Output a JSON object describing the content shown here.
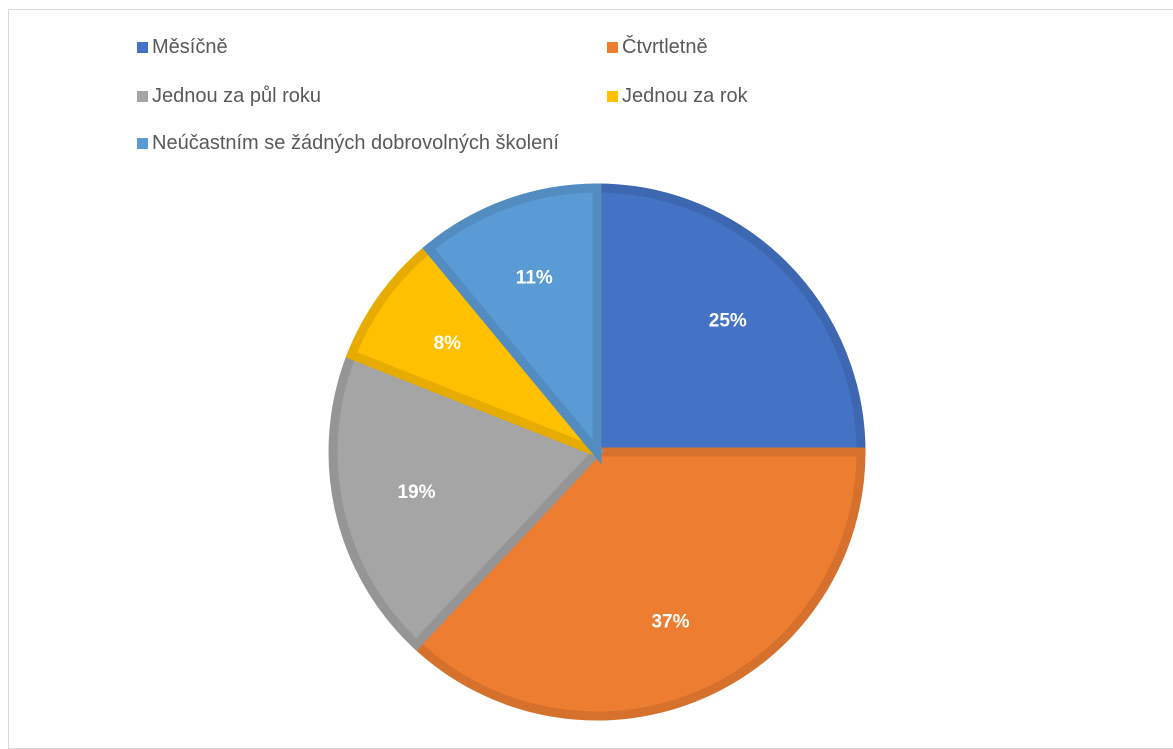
{
  "chart_data": {
    "type": "pie",
    "title": "",
    "categories": [
      "Měsíčně",
      "Čtvrtletně",
      "Jednou za půl roku",
      "Jednou za rok",
      "Neúčastním se žádných dobrovolných školení"
    ],
    "values": [
      25,
      37,
      19,
      8,
      11
    ],
    "value_labels": [
      "25%",
      "37%",
      "19%",
      "8%",
      "11%"
    ],
    "colors": [
      "#4472C4",
      "#ED7D31",
      "#A5A5A5",
      "#FFC000",
      "#5B9BD5"
    ],
    "start_angle_deg": 0,
    "direction": "clockwise",
    "legend_position": "top"
  }
}
